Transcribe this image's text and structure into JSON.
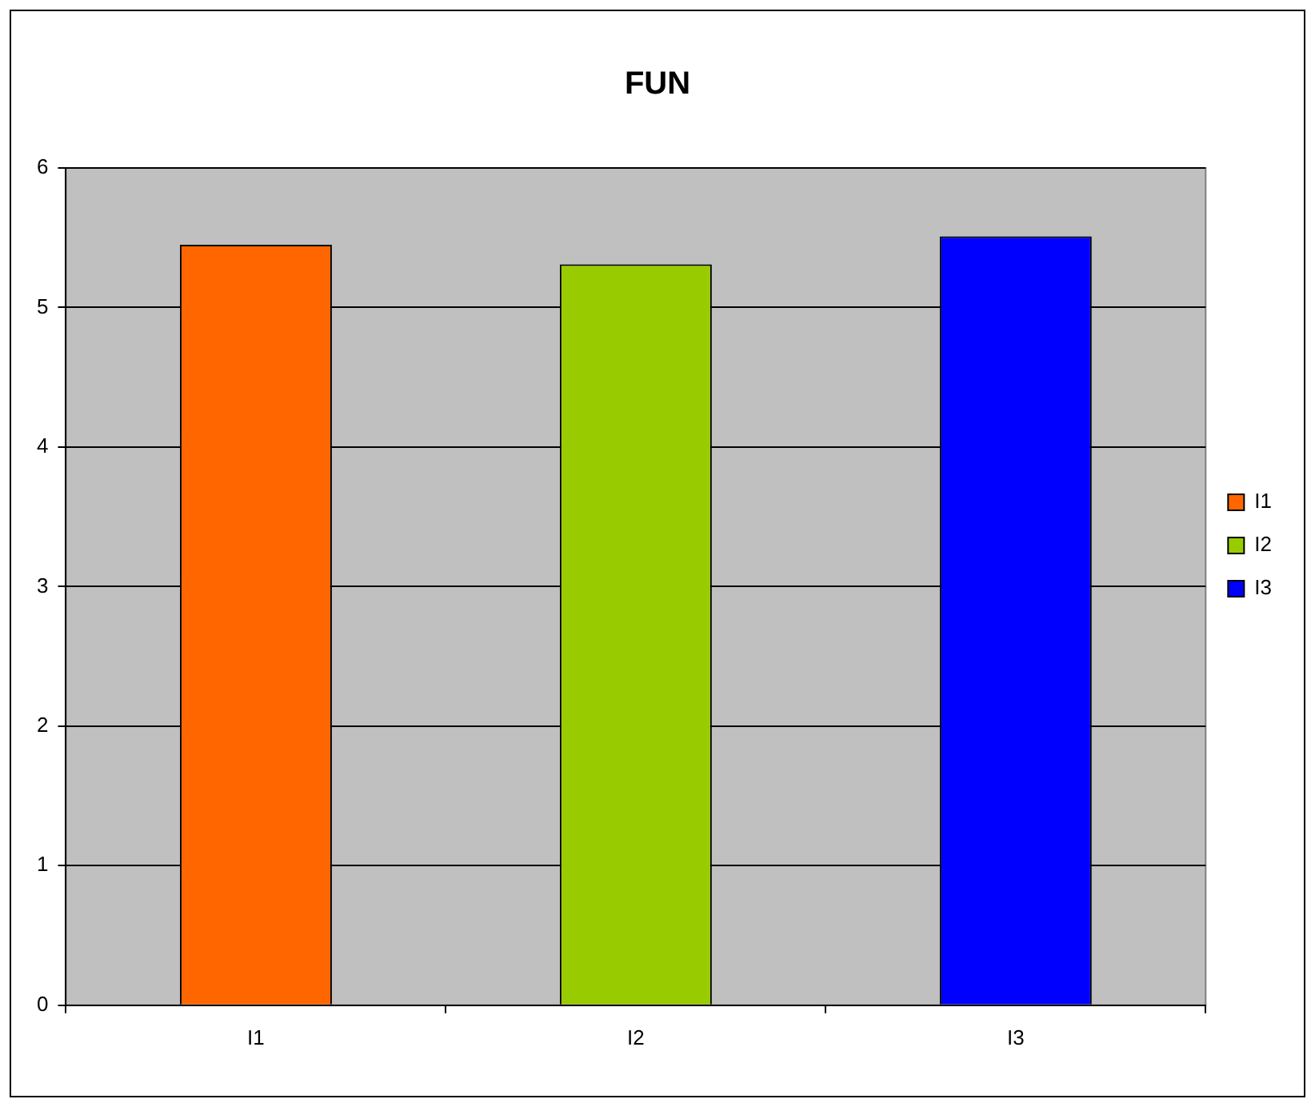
{
  "chart_data": {
    "type": "bar",
    "title": "FUN",
    "categories": [
      "I1",
      "I2",
      "I3"
    ],
    "series": [
      {
        "name": "I1",
        "color": "#ff6600",
        "values": [
          5.45,
          null,
          null
        ]
      },
      {
        "name": "I2",
        "color": "#99cc00",
        "values": [
          null,
          5.31,
          null
        ]
      },
      {
        "name": "I3",
        "color": "#0000ff",
        "values": [
          null,
          null,
          5.51
        ]
      }
    ],
    "ylim": [
      0,
      6
    ],
    "yticks": [
      0,
      1,
      2,
      3,
      4,
      5,
      6
    ],
    "grid": "y",
    "legend": "right"
  }
}
